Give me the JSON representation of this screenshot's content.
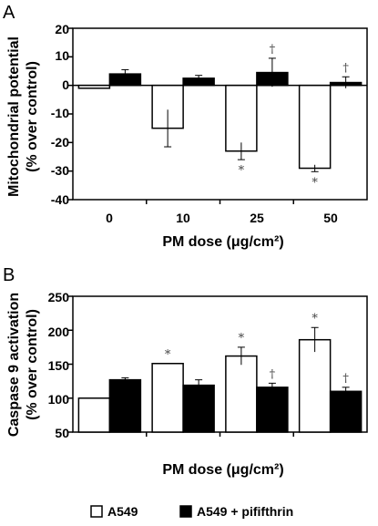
{
  "chart_data": [
    {
      "panel": "A",
      "type": "bar",
      "xlabel": "PM dose (μg/cm²)",
      "ylabel_lines": [
        "Mitochondrial potential",
        "(% over control)"
      ],
      "categories": [
        "0",
        "10",
        "25",
        "50"
      ],
      "ylim": [
        -40,
        20
      ],
      "yticks": [
        "20",
        "10",
        "0",
        "-10",
        "-20",
        "-30",
        "-40"
      ],
      "series": [
        {
          "name": "A549",
          "color": "#ffffff",
          "values": [
            -1,
            -15,
            -23,
            -29
          ],
          "errors": [
            0,
            6.5,
            3,
            1.2
          ],
          "annotations": [
            "",
            "",
            "*",
            "*"
          ]
        },
        {
          "name": "A549 + pififthrin",
          "color": "#000000",
          "values": [
            4,
            2.5,
            4.5,
            1
          ],
          "errors": [
            1.5,
            1,
            5,
            2
          ],
          "annotations": [
            "",
            "",
            "†",
            "†"
          ]
        }
      ]
    },
    {
      "panel": "B",
      "type": "bar",
      "xlabel": "PM dose (μg/cm²)",
      "ylabel_lines": [
        "Caspase 9 activation",
        "(% over control)"
      ],
      "categories": [
        "0",
        "10",
        "25",
        "50"
      ],
      "ylim": [
        50,
        250
      ],
      "yticks": [
        "250",
        "200",
        "150",
        "100",
        "50"
      ],
      "series": [
        {
          "name": "A549",
          "color": "#ffffff",
          "values": [
            100,
            151,
            162,
            186
          ],
          "errors": [
            0,
            0,
            13,
            18
          ],
          "annotations": [
            "",
            "*",
            "*",
            "*"
          ]
        },
        {
          "name": "A549 + pififthrin",
          "color": "#000000",
          "values": [
            127,
            119,
            116,
            110
          ],
          "errors": [
            3,
            8,
            6,
            6
          ],
          "annotations": [
            "",
            "",
            "†",
            "†"
          ]
        }
      ]
    }
  ],
  "legend": {
    "items": [
      {
        "label": "A549",
        "color": "#ffffff"
      },
      {
        "label": "A549 + pififthrin",
        "color": "#000000"
      }
    ]
  }
}
